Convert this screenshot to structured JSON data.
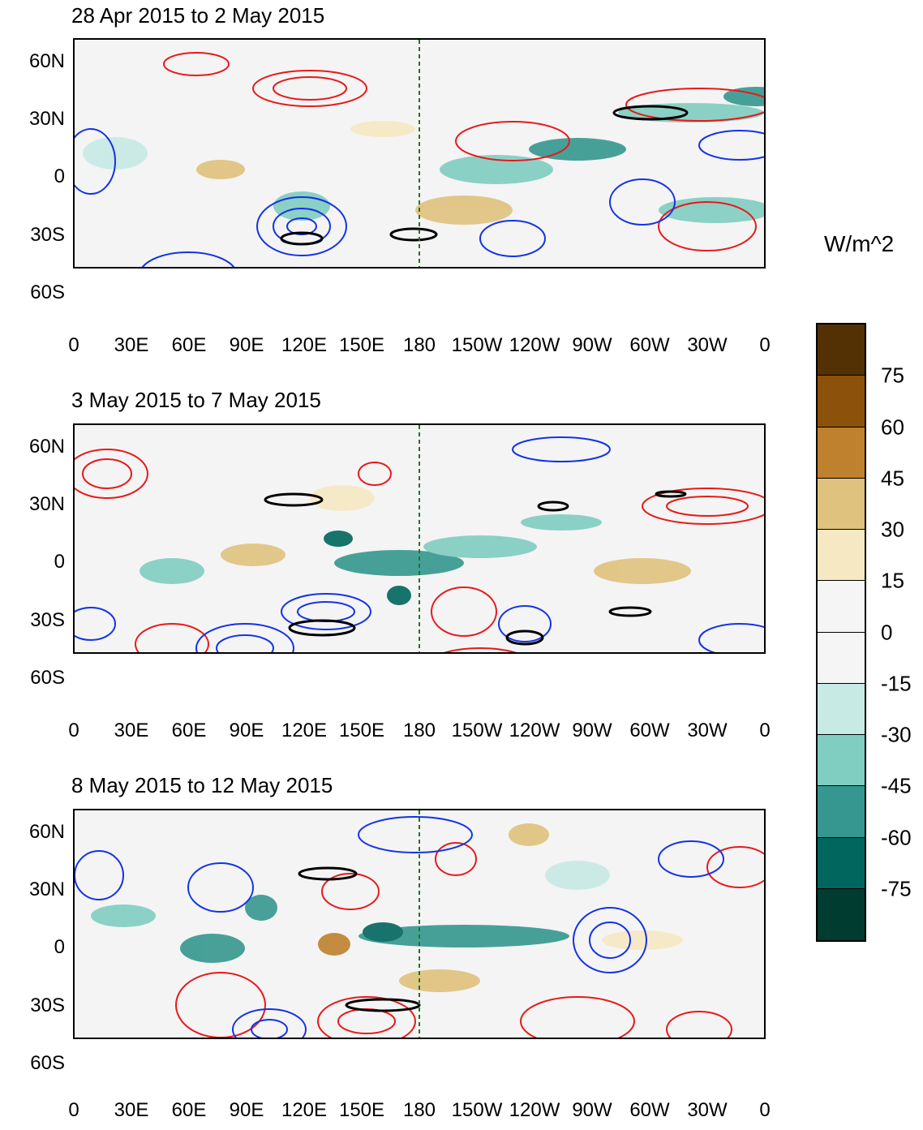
{
  "panels": [
    {
      "title": "28 Apr 2015 to 2 May 2015"
    },
    {
      "title": "3 May 2015 to 7 May 2015"
    },
    {
      "title": "8 May 2015 to 12 May 2015"
    }
  ],
  "lat_labels": [
    "60N",
    "30N",
    "0",
    "30S",
    "60S"
  ],
  "lon_labels": [
    "0",
    "30E",
    "60E",
    "90E",
    "120E",
    "150E",
    "180",
    "150W",
    "120W",
    "90W",
    "60W",
    "30W",
    "0"
  ],
  "colorbar": {
    "units": "W/m^2",
    "labels": [
      "75",
      "60",
      "45",
      "30",
      "15",
      "0",
      "-15",
      "-30",
      "-45",
      "-60",
      "-75"
    ],
    "colors": [
      "#543005",
      "#8c510a",
      "#bf812d",
      "#dfc27d",
      "#f6e8c3",
      "#f5f5f5",
      "#f5f5f5",
      "#c7eae5",
      "#80cdc1",
      "#35978f",
      "#01665e",
      "#003c30"
    ]
  },
  "colors": {
    "coast": "#1a7a1a",
    "positive_contour": "#e8191a",
    "negative_contour": "#1432e6",
    "significance": "#000000"
  }
}
